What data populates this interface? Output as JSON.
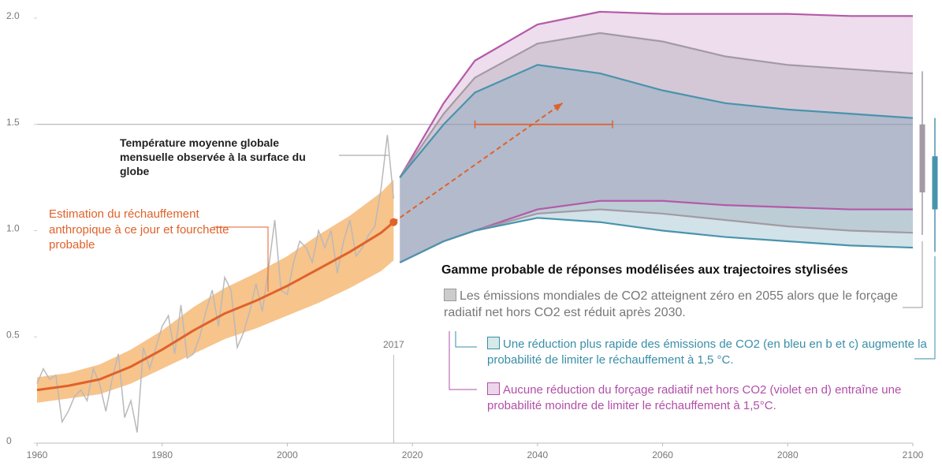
{
  "chart_data": {
    "type": "line",
    "xlim": [
      1960,
      2100
    ],
    "xticks": [
      1960,
      1980,
      2000,
      2020,
      2040,
      2060,
      2080,
      2100
    ],
    "ylim": [
      0,
      2
    ],
    "yticks": [
      0,
      0.5,
      {
        "value": 1,
        "label": "1.0"
      },
      1.5,
      {
        "value": 2,
        "label": "2.0"
      }
    ],
    "hline": 1.5,
    "marker_year": {
      "value": 2017,
      "label": "2017"
    },
    "series": [
      {
        "name": "Température moyenne globale mensuelle observée à la surface du globe",
        "color": "#b9b9b9",
        "x": [
          1960,
          1961,
          1962,
          1963,
          1964,
          1965,
          1966,
          1967,
          1968,
          1969,
          1970,
          1971,
          1972,
          1973,
          1974,
          1975,
          1976,
          1977,
          1978,
          1979,
          1980,
          1981,
          1982,
          1983,
          1984,
          1985,
          1986,
          1987,
          1988,
          1989,
          1990,
          1991,
          1992,
          1993,
          1994,
          1995,
          1996,
          1997,
          1998,
          1999,
          2000,
          2001,
          2002,
          2003,
          2004,
          2005,
          2006,
          2007,
          2008,
          2009,
          2010,
          2011,
          2012,
          2013,
          2014,
          2015,
          2016,
          2017
        ],
        "values": [
          0.28,
          0.35,
          0.3,
          0.32,
          0.1,
          0.15,
          0.22,
          0.25,
          0.2,
          0.35,
          0.28,
          0.15,
          0.3,
          0.42,
          0.12,
          0.2,
          0.05,
          0.45,
          0.35,
          0.45,
          0.55,
          0.6,
          0.42,
          0.65,
          0.4,
          0.42,
          0.5,
          0.62,
          0.72,
          0.55,
          0.78,
          0.72,
          0.45,
          0.52,
          0.62,
          0.75,
          0.62,
          0.82,
          1.05,
          0.72,
          0.7,
          0.85,
          0.95,
          0.92,
          0.85,
          1.0,
          0.92,
          1.0,
          0.8,
          0.95,
          1.05,
          0.88,
          0.92,
          0.98,
          1.02,
          1.2,
          1.45,
          1.15
        ]
      },
      {
        "name": "Estimation du réchauffement anthropique à ce jour et fourchette probable",
        "color": "#e0622a",
        "band_color": "#f7c48c",
        "x": [
          1960,
          1965,
          1970,
          1975,
          1980,
          1985,
          1990,
          1995,
          2000,
          2005,
          2010,
          2015,
          2017
        ],
        "values": [
          0.25,
          0.27,
          0.3,
          0.36,
          0.44,
          0.53,
          0.61,
          0.67,
          0.74,
          0.82,
          0.9,
          0.99,
          1.04
        ],
        "lower": [
          0.19,
          0.21,
          0.23,
          0.28,
          0.35,
          0.42,
          0.49,
          0.54,
          0.6,
          0.66,
          0.73,
          0.81,
          0.86
        ],
        "upper": [
          0.31,
          0.33,
          0.37,
          0.44,
          0.53,
          0.64,
          0.73,
          0.8,
          0.88,
          0.98,
          1.07,
          1.18,
          1.24
        ]
      }
    ],
    "projection": {
      "color": "#e0622a",
      "x": [
        2017,
        2044
      ],
      "values": [
        1.04,
        1.6
      ]
    },
    "crossing_range": {
      "value": 1.5,
      "x": [
        2030,
        2052
      ]
    },
    "ranges_title": "Gamme probable de réponses modélisées aux trajectoires stylisées",
    "ranges": [
      {
        "name": "Aucune réduction du forçage radiatif net hors CO2 (violet en d) entraîne une probabilité moindre de limiter le réchauffement à 1,5°C.",
        "color": "#b45aa8",
        "fill": "rgba(200,150,200,0.32)",
        "x": [
          2018,
          2025,
          2030,
          2040,
          2050,
          2060,
          2070,
          2080,
          2090,
          2100
        ],
        "upper": [
          1.25,
          1.6,
          1.8,
          1.97,
          2.03,
          2.02,
          2.02,
          2.02,
          2.01,
          2.01
        ],
        "lower": [
          0.85,
          0.95,
          1.0,
          1.1,
          1.14,
          1.14,
          1.12,
          1.11,
          1.1,
          1.1
        ]
      },
      {
        "name": "Les émissions mondiales de CO2 atteignent zéro en 2055 alors que le forçage radiatif net hors CO2 est réduit après 2030.",
        "color": "#a39aa3",
        "fill": "rgba(140,140,150,0.25)",
        "x": [
          2018,
          2025,
          2030,
          2040,
          2050,
          2060,
          2070,
          2080,
          2090,
          2100
        ],
        "upper": [
          1.25,
          1.55,
          1.72,
          1.88,
          1.93,
          1.89,
          1.82,
          1.78,
          1.76,
          1.74
        ],
        "lower": [
          0.85,
          0.95,
          1.0,
          1.08,
          1.1,
          1.08,
          1.05,
          1.02,
          1.0,
          0.99
        ],
        "bar_likely": [
          1.18,
          1.5
        ],
        "bar_range": [
          0.98,
          1.75
        ]
      },
      {
        "name": "Une réduction plus rapide des émissions de CO2 (en bleu en b et c) augmente la probabilité de limiter le réchauffement à 1,5 °C.",
        "color": "#4a93ad",
        "fill": "rgba(90,150,175,0.28)",
        "x": [
          2018,
          2025,
          2030,
          2040,
          2050,
          2060,
          2070,
          2080,
          2090,
          2100
        ],
        "upper": [
          1.25,
          1.5,
          1.65,
          1.78,
          1.74,
          1.66,
          1.6,
          1.57,
          1.55,
          1.53
        ],
        "lower": [
          0.85,
          0.95,
          1.0,
          1.06,
          1.04,
          1.0,
          0.97,
          0.95,
          0.93,
          0.92
        ],
        "bar_likely": [
          1.1,
          1.35
        ],
        "bar_range": [
          0.9,
          1.53
        ]
      }
    ]
  }
}
